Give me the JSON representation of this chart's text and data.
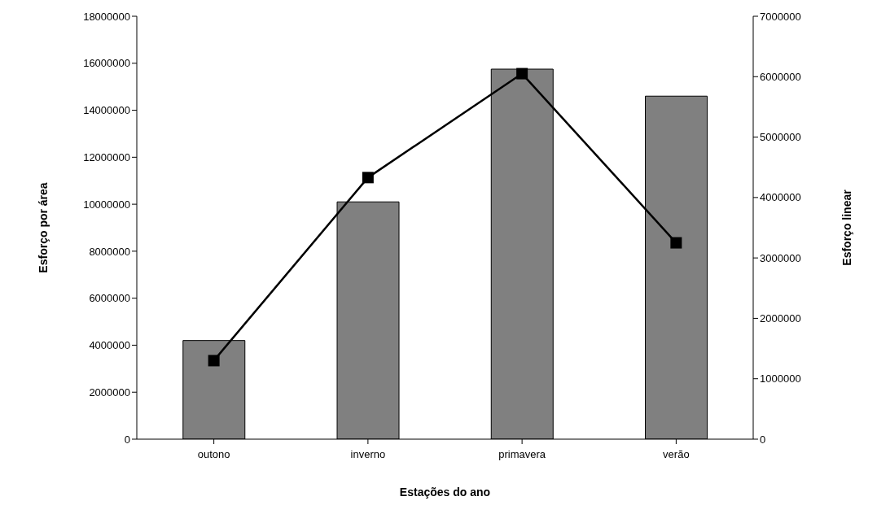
{
  "chart_data": {
    "type": "bar",
    "xlabel": "Estações do ano",
    "ylabel": "Esforço por área",
    "y2label": "Esforço linear",
    "categories": [
      "outono",
      "inverno",
      "primavera",
      "verão"
    ],
    "series": [
      {
        "color": "#808080",
        "values": [
          4200000,
          10100000,
          15750000,
          14600000
        ]
      },
      {
        "type": "line",
        "axis": "y2",
        "color": "#000000",
        "marker": "square",
        "line_style": "solid",
        "values": [
          1300000,
          4330000,
          6050000,
          3250000
        ]
      }
    ],
    "ylim": [
      0,
      18000000
    ],
    "yticks": [
      0,
      2000000,
      4000000,
      6000000,
      8000000,
      10000000,
      12000000,
      14000000,
      16000000,
      18000000
    ],
    "y2lim": [
      0,
      7000000
    ],
    "y2ticks": [
      0,
      1000000,
      2000000,
      3000000,
      4000000,
      5000000,
      6000000,
      7000000
    ],
    "grid": false,
    "legend": false
  }
}
